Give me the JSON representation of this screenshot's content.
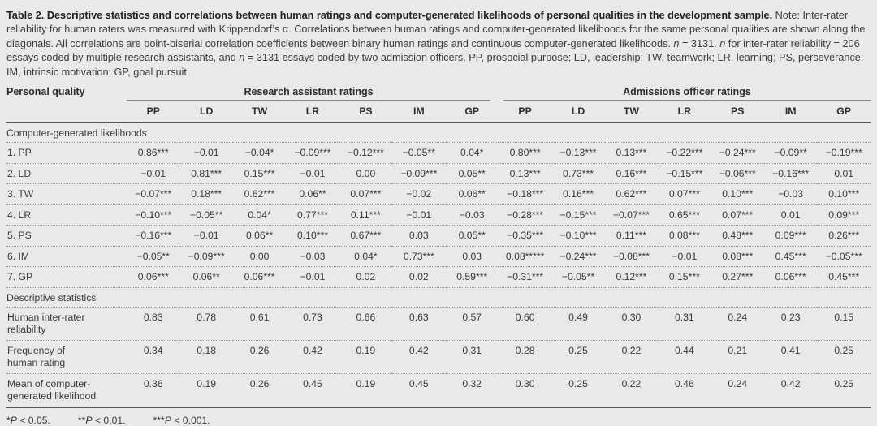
{
  "caption": {
    "segments": [
      {
        "text": "Table 2. Descriptive statistics and correlations between human ratings and computer-generated likelihoods of personal qualities in the development sample.",
        "style": "bold"
      },
      {
        "text": " Note: Inter-rater reliability for human raters was measured with Krippendorf’s α. Correlations between human ratings and computer-generated likelihoods for the same personal qualities are shown along the diagonals. All correlations are point-biserial correlation coefficients between binary human ratings and continuous computer-generated likelihoods. ",
        "style": "normal"
      },
      {
        "text": "n",
        "style": "italic"
      },
      {
        "text": " = 3131. ",
        "style": "normal"
      },
      {
        "text": "n",
        "style": "italic"
      },
      {
        "text": " for inter-rater reliability = 206 essays coded by multiple research assistants, and ",
        "style": "normal"
      },
      {
        "text": "n",
        "style": "italic"
      },
      {
        "text": " = 3131 essays coded by two admission officers. PP, prosocial purpose; LD, leadership; TW, teamwork; LR, learning; PS, perseverance; IM, intrinsic motivation; GP, goal pursuit.",
        "style": "normal"
      }
    ]
  },
  "table": {
    "row_header": "Personal quality",
    "groups": [
      {
        "label": "Research assistant ratings",
        "columns": [
          "PP",
          "LD",
          "TW",
          "LR",
          "PS",
          "IM",
          "GP"
        ]
      },
      {
        "label": "Admissions officer ratings",
        "columns": [
          "PP",
          "LD",
          "TW",
          "LR",
          "PS",
          "IM",
          "GP"
        ]
      }
    ],
    "sections": [
      {
        "label": "Computer-generated likelihoods",
        "rows": [
          {
            "label": "1. PP",
            "values": [
              "0.86***",
              "−0.01",
              "−0.04*",
              "−0.09***",
              "−0.12***",
              "−0.05**",
              "0.04*",
              "0.80***",
              "−0.13***",
              "0.13***",
              "−0.22***",
              "−0.24***",
              "−0.09**",
              "−0.19***"
            ]
          },
          {
            "label": "2. LD",
            "values": [
              "−0.01",
              "0.81***",
              "0.15***",
              "−0.01",
              "0.00",
              "−0.09***",
              "0.05**",
              "0.13***",
              "0.73***",
              "0.16***",
              "−0.15***",
              "−0.06***",
              "−0.16***",
              "0.01"
            ]
          },
          {
            "label": "3. TW",
            "values": [
              "−0.07***",
              "0.18***",
              "0.62***",
              "0.06**",
              "0.07***",
              "−0.02",
              "0.06**",
              "−0.18***",
              "0.16***",
              "0.62***",
              "0.07***",
              "0.10***",
              "−0.03",
              "0.10***"
            ]
          },
          {
            "label": "4. LR",
            "values": [
              "−0.10***",
              "−0.05**",
              "0.04*",
              "0.77***",
              "0.11***",
              "−0.01",
              "−0.03",
              "−0.28***",
              "−0.15***",
              "−0.07***",
              "0.65***",
              "0.07***",
              "0.01",
              "0.09***"
            ]
          },
          {
            "label": "5. PS",
            "values": [
              "−0.16***",
              "−0.01",
              "0.06**",
              "0.10***",
              "0.67***",
              "0.03",
              "0.05**",
              "−0.35***",
              "−0.10***",
              "0.11***",
              "0.08***",
              "0.48***",
              "0.09***",
              "0.26***"
            ]
          },
          {
            "label": "6. IM",
            "values": [
              "−0.05**",
              "−0.09***",
              "0.00",
              "−0.03",
              "0.04*",
              "0.73***",
              "0.03",
              "0.08*****",
              "−0.24***",
              "−0.08***",
              "−0.01",
              "0.08***",
              "0.45***",
              "−0.05***"
            ]
          },
          {
            "label": "7. GP",
            "values": [
              "0.06***",
              "0.06**",
              "0.06***",
              "−0.01",
              "0.02",
              "0.02",
              "0.59***",
              "−0.31***",
              "−0.05**",
              "0.12***",
              "0.15***",
              "0.27***",
              "0.06***",
              "0.45***"
            ]
          }
        ]
      },
      {
        "label": "Descriptive statistics",
        "rows": [
          {
            "label": "Human inter-rater\nreliability",
            "values": [
              "0.83",
              "0.78",
              "0.61",
              "0.73",
              "0.66",
              "0.63",
              "0.57",
              "0.60",
              "0.49",
              "0.30",
              "0.31",
              "0.24",
              "0.23",
              "0.15"
            ]
          },
          {
            "label": "Frequency of\nhuman rating",
            "values": [
              "0.34",
              "0.18",
              "0.26",
              "0.42",
              "0.19",
              "0.42",
              "0.31",
              "0.28",
              "0.25",
              "0.22",
              "0.44",
              "0.21",
              "0.41",
              "0.25"
            ]
          },
          {
            "label": "Mean of computer-\ngenerated likelihood",
            "values": [
              "0.36",
              "0.19",
              "0.26",
              "0.45",
              "0.19",
              "0.45",
              "0.32",
              "0.30",
              "0.25",
              "0.22",
              "0.46",
              "0.24",
              "0.42",
              "0.25"
            ]
          }
        ]
      }
    ]
  },
  "footnote": {
    "items": [
      {
        "stars": "*",
        "p_label": "P",
        "threshold": " < 0.05."
      },
      {
        "stars": "**",
        "p_label": "P",
        "threshold": " < 0.01."
      },
      {
        "stars": "***",
        "p_label": "P",
        "threshold": " < 0.001."
      }
    ]
  }
}
